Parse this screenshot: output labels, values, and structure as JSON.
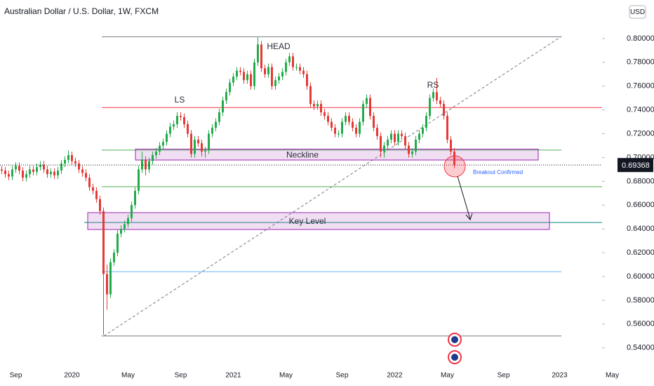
{
  "chart_data": {
    "type": "candlestick",
    "title": "Australian Dollar / U.S. Dollar, 1W, FXCM",
    "currency": "USD",
    "categories": [
      null,
      null,
      null,
      null,
      "Sep",
      null,
      null,
      null,
      null,
      null,
      null,
      null,
      null,
      null,
      null,
      null,
      null,
      null,
      null,
      null,
      "2020",
      null,
      null,
      null,
      null,
      null,
      null,
      null,
      null,
      null,
      null,
      null,
      null,
      null,
      null,
      null,
      "May",
      null,
      null,
      null,
      null,
      null,
      null,
      null,
      null,
      null,
      null,
      null,
      null,
      null,
      null,
      "Sep",
      null,
      null,
      null,
      null,
      null,
      null,
      null,
      null,
      null,
      null,
      null,
      null,
      null,
      null,
      "2021",
      null,
      null,
      null,
      null,
      null,
      null,
      null,
      null,
      null,
      null,
      null,
      null,
      null,
      null,
      "May",
      null,
      null,
      null,
      null,
      null,
      null,
      null,
      null,
      null,
      null,
      null,
      null,
      null,
      null,
      null,
      "Sep",
      null,
      null,
      null,
      null,
      null,
      null,
      null,
      null,
      null,
      null,
      null,
      null,
      null,
      null,
      "2022",
      null,
      null,
      null,
      null,
      null,
      null,
      null,
      null,
      null,
      null,
      null,
      null,
      null,
      null,
      "May",
      null,
      null,
      null,
      null,
      null,
      null,
      null,
      null,
      null,
      null,
      null,
      null,
      null,
      null,
      null,
      "Sep",
      null,
      null,
      null,
      null,
      null,
      null,
      null,
      null,
      null,
      null,
      null,
      null,
      null,
      null,
      null,
      "2023",
      null,
      null,
      null,
      null,
      null,
      null,
      null,
      null,
      null,
      null,
      null,
      null,
      null,
      null,
      "May",
      null
    ],
    "open": [
      0.69,
      0.689,
      0.686,
      0.684,
      0.69,
      0.693,
      0.689,
      0.683,
      0.686,
      0.69,
      0.688,
      0.692,
      0.694,
      0.69,
      0.686,
      0.688,
      0.685,
      0.689,
      0.695,
      0.698,
      0.702,
      0.697,
      0.695,
      0.69,
      0.687,
      0.683,
      0.675,
      0.672,
      0.665,
      0.655,
      0.602,
      0.585,
      0.612,
      0.62,
      0.636,
      0.64,
      0.644,
      0.649,
      0.66,
      0.672,
      0.69,
      0.698,
      0.69,
      0.697,
      0.702,
      0.705,
      0.71,
      0.713,
      0.72,
      0.726,
      0.728,
      0.735,
      0.734,
      0.728,
      0.72,
      0.703,
      0.715,
      0.712,
      0.705,
      0.706,
      0.72,
      0.725,
      0.73,
      0.738,
      0.748,
      0.755,
      0.763,
      0.768,
      0.773,
      0.772,
      0.765,
      0.77,
      0.76,
      0.78,
      0.795,
      0.775,
      0.77,
      0.776,
      0.76,
      0.765,
      0.768,
      0.772,
      0.78,
      0.785,
      0.776,
      0.776,
      0.773,
      0.77,
      0.76,
      0.745,
      0.743,
      0.745,
      0.738,
      0.735,
      0.73,
      0.725,
      0.72,
      0.72,
      0.73,
      0.735,
      0.73,
      0.725,
      0.72,
      0.73,
      0.745,
      0.75,
      0.735,
      0.725,
      0.718,
      0.705,
      0.71,
      0.715,
      0.72,
      0.713,
      0.72,
      0.718,
      0.71,
      0.703,
      0.705,
      0.715,
      0.72,
      0.725,
      0.735,
      0.75,
      0.755,
      0.748,
      0.745,
      0.735,
      0.715,
      0.705,
      null,
      null,
      null,
      null,
      null,
      null,
      null,
      null,
      null,
      null,
      null,
      null,
      null,
      null,
      null,
      null,
      null,
      null,
      null,
      null,
      null,
      null,
      null,
      null,
      null,
      null,
      null,
      null,
      null,
      null,
      null,
      null,
      null,
      null,
      null,
      null,
      null,
      null,
      null,
      null,
      null,
      null,
      null,
      null,
      null,
      null
    ],
    "high": [
      0.693,
      0.692,
      0.689,
      0.693,
      0.696,
      0.696,
      0.692,
      0.689,
      0.693,
      0.693,
      0.695,
      0.697,
      0.697,
      0.693,
      0.691,
      0.691,
      0.692,
      0.698,
      0.701,
      0.706,
      0.705,
      0.7,
      0.698,
      0.693,
      0.69,
      0.686,
      0.678,
      0.675,
      0.668,
      0.658,
      0.61,
      0.615,
      0.623,
      0.639,
      0.643,
      0.647,
      0.652,
      0.663,
      0.675,
      0.693,
      0.705,
      0.701,
      0.7,
      0.705,
      0.708,
      0.713,
      0.716,
      0.723,
      0.729,
      0.731,
      0.738,
      0.738,
      0.737,
      0.731,
      0.723,
      0.718,
      0.718,
      0.715,
      0.709,
      0.723,
      0.728,
      0.733,
      0.741,
      0.751,
      0.758,
      0.766,
      0.771,
      0.776,
      0.776,
      0.775,
      0.773,
      0.773,
      0.783,
      0.801,
      0.798,
      0.778,
      0.779,
      0.779,
      0.768,
      0.771,
      0.775,
      0.783,
      0.788,
      0.788,
      0.779,
      0.779,
      0.776,
      0.773,
      0.763,
      0.748,
      0.748,
      0.748,
      0.741,
      0.738,
      0.733,
      0.728,
      0.723,
      0.733,
      0.738,
      0.738,
      0.733,
      0.728,
      0.733,
      0.748,
      0.753,
      0.753,
      0.738,
      0.728,
      0.721,
      0.713,
      0.718,
      0.723,
      0.723,
      0.723,
      0.723,
      0.721,
      0.713,
      0.708,
      0.718,
      0.723,
      0.728,
      0.738,
      0.753,
      0.758,
      0.767,
      0.751,
      0.748,
      0.738,
      0.718,
      0.708,
      null,
      null,
      null,
      null,
      null,
      null,
      null,
      null,
      null,
      null,
      null,
      null,
      null,
      null,
      null,
      null,
      null,
      null,
      null,
      null,
      null,
      null,
      null,
      null,
      null,
      null,
      null,
      null,
      null,
      null,
      null,
      null,
      null,
      null,
      null,
      null,
      null,
      null,
      null,
      null,
      null,
      null,
      null,
      null,
      null,
      null
    ],
    "low": [
      0.686,
      0.683,
      0.681,
      0.681,
      0.687,
      0.686,
      0.68,
      0.68,
      0.683,
      0.685,
      0.685,
      0.689,
      0.687,
      0.683,
      0.683,
      0.682,
      0.682,
      0.686,
      0.692,
      0.695,
      0.694,
      0.692,
      0.687,
      0.684,
      0.68,
      0.672,
      0.669,
      0.662,
      0.652,
      0.551,
      0.572,
      0.582,
      0.609,
      0.617,
      0.633,
      0.637,
      0.641,
      0.646,
      0.657,
      0.669,
      0.687,
      0.685,
      0.687,
      0.694,
      0.699,
      0.702,
      0.707,
      0.71,
      0.717,
      0.723,
      0.725,
      0.731,
      0.725,
      0.717,
      0.7,
      0.7,
      0.709,
      0.701,
      0.7,
      0.703,
      0.717,
      0.722,
      0.727,
      0.735,
      0.745,
      0.752,
      0.76,
      0.765,
      0.769,
      0.762,
      0.762,
      0.757,
      0.757,
      0.777,
      0.772,
      0.767,
      0.767,
      0.757,
      0.757,
      0.762,
      0.765,
      0.769,
      0.777,
      0.773,
      0.773,
      0.77,
      0.767,
      0.757,
      0.742,
      0.74,
      0.74,
      0.735,
      0.732,
      0.727,
      0.722,
      0.717,
      0.717,
      0.717,
      0.727,
      0.727,
      0.722,
      0.717,
      0.717,
      0.727,
      0.742,
      0.732,
      0.722,
      0.715,
      0.7,
      0.7,
      0.707,
      0.712,
      0.71,
      0.71,
      0.715,
      0.707,
      0.7,
      0.7,
      0.702,
      0.712,
      0.717,
      0.722,
      0.732,
      0.747,
      0.745,
      0.742,
      0.732,
      0.712,
      0.702,
      0.691,
      null,
      null,
      null,
      null,
      null,
      null,
      null,
      null,
      null,
      null,
      null,
      null,
      null,
      null,
      null,
      null,
      null,
      null,
      null,
      null,
      null,
      null,
      null,
      null,
      null,
      null,
      null,
      null,
      null,
      null,
      null,
      null,
      null,
      null,
      null,
      null,
      null,
      null,
      null,
      null,
      null,
      null,
      null,
      null,
      null,
      null
    ],
    "close": [
      0.689,
      0.686,
      0.684,
      0.69,
      0.693,
      0.689,
      0.683,
      0.686,
      0.69,
      0.688,
      0.692,
      0.694,
      0.69,
      0.686,
      0.688,
      0.685,
      0.689,
      0.695,
      0.698,
      0.702,
      0.697,
      0.695,
      0.69,
      0.687,
      0.683,
      0.675,
      0.672,
      0.665,
      0.655,
      0.602,
      0.585,
      0.612,
      0.62,
      0.636,
      0.64,
      0.644,
      0.649,
      0.66,
      0.672,
      0.69,
      0.698,
      0.69,
      0.697,
      0.702,
      0.705,
      0.71,
      0.713,
      0.72,
      0.726,
      0.728,
      0.735,
      0.734,
      0.728,
      0.72,
      0.703,
      0.715,
      0.712,
      0.705,
      0.706,
      0.72,
      0.725,
      0.73,
      0.738,
      0.748,
      0.755,
      0.763,
      0.768,
      0.773,
      0.772,
      0.765,
      0.77,
      0.76,
      0.78,
      0.795,
      0.775,
      0.77,
      0.776,
      0.76,
      0.765,
      0.768,
      0.772,
      0.78,
      0.785,
      0.776,
      0.776,
      0.773,
      0.77,
      0.76,
      0.745,
      0.743,
      0.745,
      0.738,
      0.735,
      0.73,
      0.725,
      0.72,
      0.72,
      0.73,
      0.735,
      0.73,
      0.725,
      0.72,
      0.73,
      0.745,
      0.75,
      0.735,
      0.725,
      0.718,
      0.705,
      0.71,
      0.715,
      0.72,
      0.713,
      0.72,
      0.718,
      0.71,
      0.703,
      0.705,
      0.715,
      0.72,
      0.725,
      0.735,
      0.75,
      0.755,
      0.748,
      0.745,
      0.735,
      0.715,
      0.705,
      0.694,
      null,
      null,
      null,
      null,
      null,
      null,
      null,
      null,
      null,
      null,
      null,
      null,
      null,
      null,
      null,
      null,
      null,
      null,
      null,
      null,
      null,
      null,
      null,
      null,
      null,
      null,
      null,
      null,
      null,
      null,
      null,
      null,
      null,
      null,
      null,
      null,
      null,
      null,
      null,
      null,
      null,
      null,
      null,
      null,
      null,
      null
    ],
    "up_color": "#22ab4a",
    "down_color": "#e53935",
    "ylim": [
      0.5286,
      0.8324
    ],
    "yticks": [
      {
        "value": 0.54,
        "label": "0.54000"
      },
      {
        "value": 0.56,
        "label": "0.56000"
      },
      {
        "value": 0.58,
        "label": "0.58000"
      },
      {
        "value": 0.6,
        "label": "0.60000"
      },
      {
        "value": 0.62,
        "label": "0.62000"
      },
      {
        "value": 0.64,
        "label": "0.64000"
      },
      {
        "value": 0.66,
        "label": "0.66000"
      },
      {
        "value": 0.68,
        "label": "0.68000"
      },
      {
        "value": 0.7,
        "label": "0.70000"
      },
      {
        "value": 0.72,
        "label": "0.72000"
      },
      {
        "value": 0.74,
        "label": "0.74000"
      },
      {
        "value": 0.76,
        "label": "0.76000"
      },
      {
        "value": 0.78,
        "label": "0.78000"
      },
      {
        "value": 0.8,
        "label": "0.80000"
      }
    ],
    "last_price": 0.69368,
    "levels": [
      {
        "price": 0.8015,
        "color": "#787b86"
      },
      {
        "price": 0.742,
        "color": "#f23645"
      },
      {
        "price": 0.7062,
        "color": "#4caf50"
      },
      {
        "price": 0.6755,
        "color": "#4caf50"
      },
      {
        "price": 0.6454,
        "color": "#00897b"
      },
      {
        "price": 0.604,
        "color": "#64b5f6"
      },
      {
        "price": 0.55,
        "color": "#787b86"
      }
    ],
    "zones": [
      {
        "label": "Neckline",
        "top": 0.7071,
        "bottom": 0.6979
      },
      {
        "label": "Key Level",
        "top": 0.6537,
        "bottom": 0.6395
      }
    ],
    "trendline": [
      0.55,
      0.8018
    ],
    "annotations": [
      "LS",
      "HEAD",
      "RS"
    ],
    "breakout_label": "Breakout Confirmed"
  }
}
